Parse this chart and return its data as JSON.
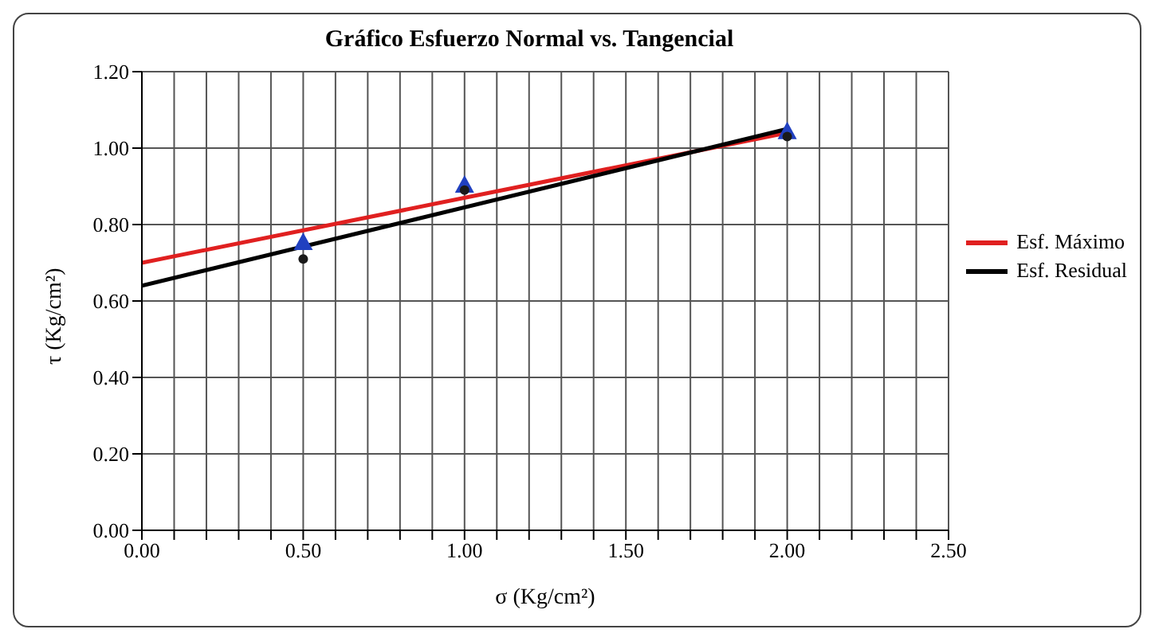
{
  "chart_data": {
    "type": "line",
    "title": "Gráfico Esfuerzo Normal vs. Tangencial",
    "xlabel": "σ (Kg/cm²)",
    "ylabel": "τ (Kg/cm²)",
    "x": [
      0,
      2
    ],
    "series": [
      {
        "name": "Esf. Máximo",
        "color": "#e02020",
        "values": [
          0.7,
          1.04
        ]
      },
      {
        "name": "Esf. Residual",
        "color": "#000000",
        "values": [
          0.64,
          1.05
        ]
      },
      {
        "type": "scatter",
        "marker": "triangle",
        "color": "#2040c0",
        "x": [
          0.5,
          1.0,
          2.0
        ],
        "values": [
          0.75,
          0.9,
          1.04
        ]
      },
      {
        "type": "scatter",
        "marker": "circle",
        "color": "#1a1a1a",
        "x": [
          0.5,
          1.0,
          2.0
        ],
        "values": [
          0.71,
          0.89,
          1.03
        ]
      }
    ],
    "xlim": [
      0,
      2.5
    ],
    "xticks": [
      {
        "value": 0,
        "label": "0.00"
      },
      {
        "value": 0.1,
        "label": null
      },
      {
        "value": 0.2,
        "label": null
      },
      {
        "value": 0.3,
        "label": null
      },
      {
        "value": 0.4,
        "label": null
      },
      {
        "value": 0.5,
        "label": "0.50"
      },
      {
        "value": 0.6,
        "label": null
      },
      {
        "value": 0.7,
        "label": null
      },
      {
        "value": 0.8,
        "label": null
      },
      {
        "value": 0.9,
        "label": null
      },
      {
        "value": 1.0,
        "label": "1.00"
      },
      {
        "value": 1.1,
        "label": null
      },
      {
        "value": 1.2,
        "label": null
      },
      {
        "value": 1.3,
        "label": null
      },
      {
        "value": 1.4,
        "label": null
      },
      {
        "value": 1.5,
        "label": "1.50"
      },
      {
        "value": 1.6,
        "label": null
      },
      {
        "value": 1.7,
        "label": null
      },
      {
        "value": 1.8,
        "label": null
      },
      {
        "value": 1.9,
        "label": null
      },
      {
        "value": 2.0,
        "label": "2.00"
      },
      {
        "value": 2.1,
        "label": null
      },
      {
        "value": 2.2,
        "label": null
      },
      {
        "value": 2.3,
        "label": null
      },
      {
        "value": 2.4,
        "label": null
      },
      {
        "value": 2.5,
        "label": "2.50"
      }
    ],
    "ylim": [
      0,
      1.2
    ],
    "yticks": [
      {
        "value": 0,
        "label": "0.00"
      },
      {
        "value": 0.2,
        "label": "0.20"
      },
      {
        "value": 0.4,
        "label": "0.40"
      },
      {
        "value": 0.6,
        "label": "0.60"
      },
      {
        "value": 0.8,
        "label": "0.80"
      },
      {
        "value": 1.0,
        "label": "1.00"
      },
      {
        "value": 1.2,
        "label": "1.20"
      }
    ],
    "grid": true,
    "legend": "right",
    "line_style": "solid"
  }
}
